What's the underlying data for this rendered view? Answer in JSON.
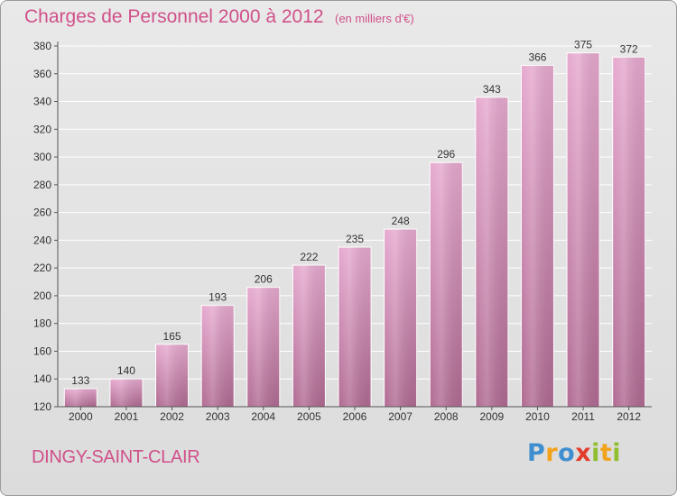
{
  "title": "Charges de Personnel 2000 à 2012",
  "subtitle": "(en milliers d'€)",
  "commune": "DINGY-SAINT-CLAIR",
  "logo": {
    "text": "Proxiti",
    "letters": [
      {
        "ch": "P",
        "color": "#3f8fd0"
      },
      {
        "ch": "r",
        "color": "#f2a31c"
      },
      {
        "ch": "o",
        "color": "#3f8fd0"
      },
      {
        "ch": "x",
        "color": "#e23c2c"
      },
      {
        "ch": "i",
        "color": "#8fbe2e"
      },
      {
        "ch": "t",
        "color": "#f2a31c"
      },
      {
        "ch": "i",
        "color": "#8fbe2e"
      }
    ]
  },
  "colors": {
    "accent": "#d0508a",
    "bar_top": "#e6a9cf",
    "bar_bottom": "#b06a92",
    "grid": "#ffffff",
    "axis_text": "#333333"
  },
  "chart_data": {
    "type": "bar",
    "title": "Charges de Personnel 2000 à 2012",
    "subtitle": "(en milliers d'€)",
    "categories": [
      "2000",
      "2001",
      "2002",
      "2003",
      "2004",
      "2005",
      "2006",
      "2007",
      "2008",
      "2009",
      "2010",
      "2011",
      "2012"
    ],
    "values": [
      133,
      140,
      165,
      193,
      206,
      222,
      235,
      248,
      296,
      343,
      366,
      375,
      372
    ],
    "ylim": [
      120,
      380
    ],
    "yticks": [
      120,
      140,
      160,
      180,
      200,
      220,
      240,
      260,
      280,
      300,
      320,
      340,
      360,
      380
    ],
    "xlabel": "",
    "ylabel": "",
    "grid": true
  }
}
